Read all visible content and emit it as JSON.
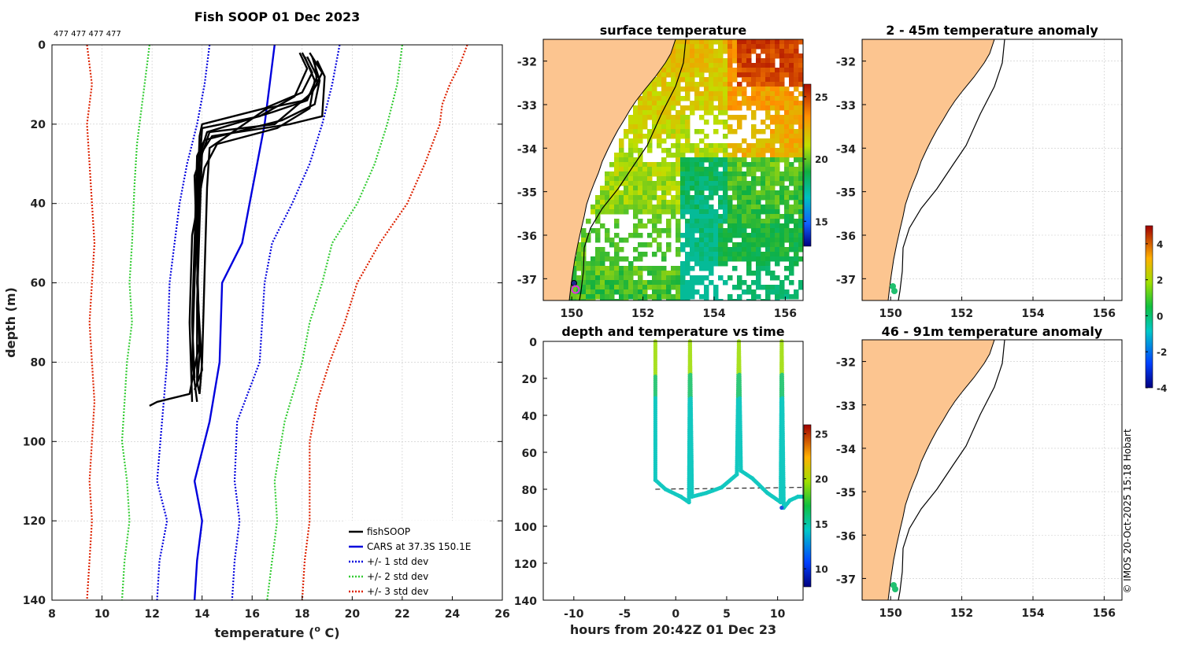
{
  "chart_data": [
    {
      "type": "line",
      "title": "Fish SOOP 01 Dec 2023",
      "top_label": "477 477 477 477",
      "xlabel": "temperature (",
      "xlabel_super": "o",
      "xlabel_tail": " C)",
      "ylabel": "depth (m)",
      "xlim": [
        8,
        26
      ],
      "ylim": [
        140,
        0
      ],
      "xticks": [
        "8",
        "10",
        "12",
        "14",
        "16",
        "18",
        "20",
        "22",
        "24",
        "26"
      ],
      "yticks": [
        "0",
        "20",
        "40",
        "60",
        "80",
        "100",
        "120",
        "140"
      ],
      "legend": [
        {
          "label": "fishSOOP",
          "color": "#000000",
          "style": "solid"
        },
        {
          "label": "CARS at 37.3S 150.1E",
          "color": "#0000dd",
          "style": "solid"
        },
        {
          "label": "+/- 1 std dev",
          "color": "#0000dd",
          "style": "dotted"
        },
        {
          "label": "+/- 2 std dev",
          "color": "#33cc33",
          "style": "dotted"
        },
        {
          "label": "+/- 3 std dev",
          "color": "#dd2200",
          "style": "dotted"
        }
      ],
      "series": [
        {
          "name": "CARS mean",
          "color": "#0000dd",
          "style": "solid",
          "points": [
            [
              16.9,
              0
            ],
            [
              16.7,
              10
            ],
            [
              16.5,
              20
            ],
            [
              16.2,
              30
            ],
            [
              15.9,
              40
            ],
            [
              15.6,
              50
            ],
            [
              14.8,
              60
            ],
            [
              14.7,
              80
            ],
            [
              14.3,
              95
            ],
            [
              13.7,
              110
            ],
            [
              14.0,
              120
            ],
            [
              13.8,
              130
            ],
            [
              13.7,
              140
            ]
          ]
        },
        {
          "name": "-1 std",
          "color": "#0000dd",
          "style": "dotted",
          "points": [
            [
              14.3,
              0
            ],
            [
              14.1,
              10
            ],
            [
              13.8,
              20
            ],
            [
              13.4,
              30
            ],
            [
              13.1,
              40
            ],
            [
              12.9,
              50
            ],
            [
              12.7,
              60
            ],
            [
              12.6,
              80
            ],
            [
              12.4,
              95
            ],
            [
              12.2,
              110
            ],
            [
              12.6,
              120
            ],
            [
              12.3,
              130
            ],
            [
              12.2,
              140
            ]
          ]
        },
        {
          "name": "+1 std",
          "color": "#0000dd",
          "style": "dotted",
          "points": [
            [
              19.5,
              0
            ],
            [
              19.2,
              10
            ],
            [
              18.8,
              20
            ],
            [
              18.3,
              30
            ],
            [
              17.6,
              40
            ],
            [
              16.8,
              50
            ],
            [
              16.5,
              60
            ],
            [
              16.3,
              80
            ],
            [
              15.4,
              95
            ],
            [
              15.3,
              110
            ],
            [
              15.5,
              120
            ],
            [
              15.3,
              130
            ],
            [
              15.2,
              140
            ]
          ]
        },
        {
          "name": "-2 std",
          "color": "#33cc33",
          "style": "dotted",
          "points": [
            [
              11.9,
              0
            ],
            [
              11.8,
              5
            ],
            [
              11.6,
              15
            ],
            [
              11.4,
              25
            ],
            [
              11.3,
              35
            ],
            [
              11.2,
              50
            ],
            [
              11.1,
              60
            ],
            [
              11.2,
              70
            ],
            [
              11.0,
              80
            ],
            [
              10.9,
              90
            ],
            [
              10.8,
              100
            ],
            [
              11.0,
              110
            ],
            [
              11.1,
              120
            ],
            [
              10.9,
              130
            ],
            [
              10.8,
              140
            ]
          ]
        },
        {
          "name": "+2 std",
          "color": "#33cc33",
          "style": "dotted",
          "points": [
            [
              22.0,
              0
            ],
            [
              21.8,
              10
            ],
            [
              21.4,
              20
            ],
            [
              20.9,
              30
            ],
            [
              20.2,
              40
            ],
            [
              19.2,
              50
            ],
            [
              18.8,
              60
            ],
            [
              18.3,
              70
            ],
            [
              18.0,
              80
            ],
            [
              17.3,
              95
            ],
            [
              16.9,
              110
            ],
            [
              17.0,
              120
            ],
            [
              16.8,
              130
            ],
            [
              16.6,
              140
            ]
          ]
        },
        {
          "name": "-3 std",
          "color": "#dd2200",
          "style": "dotted",
          "points": [
            [
              9.4,
              0
            ],
            [
              9.6,
              10
            ],
            [
              9.4,
              20
            ],
            [
              9.5,
              30
            ],
            [
              9.6,
              40
            ],
            [
              9.7,
              50
            ],
            [
              9.6,
              60
            ],
            [
              9.5,
              70
            ],
            [
              9.6,
              80
            ],
            [
              9.7,
              90
            ],
            [
              9.6,
              100
            ],
            [
              9.5,
              110
            ],
            [
              9.6,
              120
            ],
            [
              9.5,
              130
            ],
            [
              9.4,
              140
            ]
          ]
        },
        {
          "name": "+3 std",
          "color": "#dd2200",
          "style": "dotted",
          "points": [
            [
              24.6,
              0
            ],
            [
              24.3,
              5
            ],
            [
              23.9,
              10
            ],
            [
              23.6,
              15
            ],
            [
              23.5,
              20
            ],
            [
              22.9,
              30
            ],
            [
              22.2,
              40
            ],
            [
              21.1,
              50
            ],
            [
              20.2,
              60
            ],
            [
              19.7,
              70
            ],
            [
              19.1,
              80
            ],
            [
              18.6,
              90
            ],
            [
              18.3,
              100
            ],
            [
              18.3,
              110
            ],
            [
              18.3,
              120
            ],
            [
              18.1,
              130
            ],
            [
              18.0,
              140
            ]
          ]
        },
        {
          "name": "fishSOOP",
          "color": "#000000",
          "style": "solid",
          "profiles": [
            [
              [
                18.0,
                2
              ],
              [
                18.4,
                7
              ],
              [
                18.0,
                12
              ],
              [
                16.5,
                16
              ],
              [
                14.0,
                20
              ],
              [
                13.9,
                23
              ],
              [
                13.8,
                40
              ],
              [
                13.7,
                60
              ],
              [
                13.6,
                80
              ],
              [
                13.8,
                90
              ]
            ],
            [
              [
                18.2,
                3
              ],
              [
                18.6,
                8
              ],
              [
                18.2,
                14
              ],
              [
                16.8,
                17
              ],
              [
                14.2,
                22
              ],
              [
                14.0,
                26
              ],
              [
                13.9,
                45
              ],
              [
                13.8,
                65
              ],
              [
                13.8,
                85
              ],
              [
                13.9,
                88
              ]
            ],
            [
              [
                18.4,
                3
              ],
              [
                18.7,
                9
              ],
              [
                18.5,
                15
              ],
              [
                17.2,
                19
              ],
              [
                14.1,
                24
              ],
              [
                13.8,
                28
              ],
              [
                13.7,
                50
              ],
              [
                13.6,
                70
              ],
              [
                13.7,
                84
              ]
            ],
            [
              [
                17.9,
                2
              ],
              [
                18.2,
                6
              ],
              [
                17.7,
                13
              ],
              [
                16.3,
                18
              ],
              [
                14.0,
                21
              ],
              [
                13.9,
                30
              ],
              [
                13.8,
                55
              ],
              [
                13.9,
                75
              ],
              [
                13.5,
                88
              ],
              [
                12.2,
                90
              ],
              [
                11.9,
                91
              ]
            ],
            [
              [
                18.6,
                4
              ],
              [
                18.9,
                8
              ],
              [
                18.8,
                18
              ],
              [
                17.5,
                20
              ],
              [
                14.4,
                23
              ],
              [
                14.0,
                27
              ],
              [
                13.9,
                40
              ],
              [
                13.8,
                60
              ],
              [
                14.0,
                82
              ],
              [
                13.7,
                87
              ]
            ],
            [
              [
                18.1,
                3
              ],
              [
                18.5,
                9
              ],
              [
                18.3,
                16
              ],
              [
                17.0,
                21
              ],
              [
                14.6,
                25
              ],
              [
                14.1,
                31
              ],
              [
                13.6,
                48
              ],
              [
                13.5,
                70
              ],
              [
                13.6,
                90
              ]
            ],
            [
              [
                18.3,
                2
              ],
              [
                18.8,
                7
              ],
              [
                18.4,
                12
              ],
              [
                16.9,
                20
              ],
              [
                14.3,
                22
              ],
              [
                13.7,
                33
              ],
              [
                13.8,
                52
              ],
              [
                13.9,
                78
              ],
              [
                13.8,
                86
              ]
            ],
            [
              [
                18.5,
                4
              ],
              [
                18.6,
                10
              ],
              [
                18.1,
                14
              ],
              [
                16.6,
                16
              ],
              [
                14.3,
                26
              ],
              [
                14.2,
                36
              ],
              [
                14.1,
                58
              ],
              [
                14.0,
                80
              ],
              [
                13.9,
                88
              ]
            ]
          ]
        }
      ]
    },
    {
      "type": "heatmap",
      "title": "surface temperature",
      "xlim": [
        149.2,
        156.5
      ],
      "ylim": [
        -37.5,
        -31.5
      ],
      "xticks": [
        "150",
        "152",
        "154",
        "156"
      ],
      "yticks": [
        "-32",
        "-33",
        "-34",
        "-35",
        "-36",
        "-37"
      ],
      "colorbar": {
        "min": 13,
        "max": 26,
        "ticks": [
          "15",
          "20",
          "25"
        ]
      }
    },
    {
      "type": "scatter",
      "title": "depth and temperature vs time",
      "xlabel": "hours from 20:42Z 01 Dec 23",
      "xlim": [
        -13,
        12.5
      ],
      "ylim": [
        140,
        0
      ],
      "xticks": [
        "-10",
        "-5",
        "0",
        "5",
        "10"
      ],
      "yticks": [
        "0",
        "20",
        "40",
        "60",
        "80",
        "100",
        "120",
        "140"
      ],
      "colorbar": {
        "min": 8,
        "max": 26,
        "ticks": [
          "10",
          "15",
          "20",
          "25"
        ]
      },
      "reference_depth_line": [
        [
          -2,
          80
        ],
        [
          12.5,
          79
        ]
      ],
      "series": [
        {
          "name": "depth track",
          "points": [
            [
              -2.0,
              0
            ],
            [
              -2.0,
              75
            ],
            [
              -1.0,
              80
            ],
            [
              0.5,
              84
            ],
            [
              1.3,
              87
            ],
            [
              1.4,
              0
            ],
            [
              1.6,
              84
            ],
            [
              3.0,
              82
            ],
            [
              4.5,
              79
            ],
            [
              6.0,
              72
            ],
            [
              6.2,
              0
            ],
            [
              6.4,
              70
            ],
            [
              7.5,
              74
            ],
            [
              9.0,
              82
            ],
            [
              10.3,
              87
            ],
            [
              10.4,
              0
            ],
            [
              10.6,
              90
            ],
            [
              11.2,
              86
            ],
            [
              12.0,
              84
            ],
            [
              12.5,
              84
            ]
          ]
        }
      ]
    },
    {
      "type": "heatmap",
      "title": "2 - 45m temperature anomaly",
      "xlim": [
        149.2,
        156.5
      ],
      "ylim": [
        -37.5,
        -31.5
      ],
      "xticks": [
        "150",
        "152",
        "154",
        "156"
      ],
      "yticks": [
        "-32",
        "-33",
        "-34",
        "-35",
        "-36",
        "-37"
      ],
      "point": {
        "lon": 150.1,
        "lat": -37.2
      }
    },
    {
      "type": "heatmap",
      "title": "46 - 91m temperature anomaly",
      "xlim": [
        149.2,
        156.5
      ],
      "ylim": [
        -37.5,
        -31.5
      ],
      "xticks": [
        "150",
        "152",
        "154",
        "156"
      ],
      "yticks": [
        "-32",
        "-33",
        "-34",
        "-35",
        "-36",
        "-37"
      ],
      "point": {
        "lon": 150.1,
        "lat": -37.2
      },
      "colorbar": {
        "min": -4,
        "max": 5,
        "ticks": [
          "4",
          "2",
          "0",
          "-2",
          "-4"
        ]
      }
    }
  ],
  "credit": "© IMOS 20-Oct-2025 15:18 Hobart",
  "colors": {
    "land": "#fcc590",
    "axis": "#000000",
    "grid": "#c8c8c8"
  }
}
